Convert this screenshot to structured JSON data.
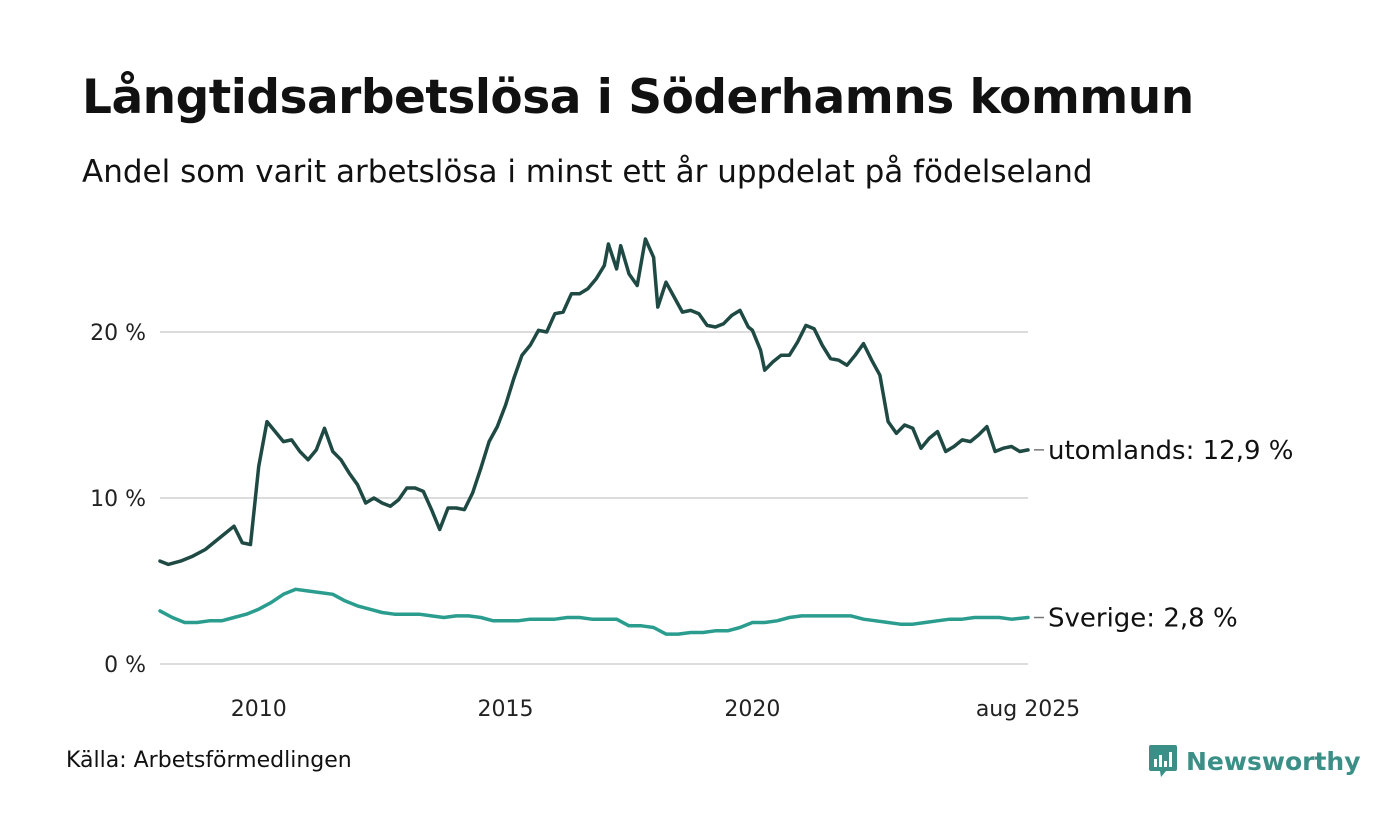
{
  "title": "Långtidsarbetslösa i Söderhamns kommun",
  "subtitle": "Andel som varit arbetslösa i minst ett år uppdelat på födelseland",
  "source": "Källa: Arbetsförmedlingen",
  "brand": {
    "name": "Newsworthy",
    "icon": "newsworthy-logo-icon",
    "color": "#3a8f86"
  },
  "chart_data": {
    "type": "line",
    "x_range": [
      "2008-01",
      "2025-08"
    ],
    "ylim": [
      0,
      26
    ],
    "y_ticks": [
      0,
      10,
      20
    ],
    "y_tick_labels": [
      "0 %",
      "10 %",
      "20 %"
    ],
    "x_ticks": [
      "2010-01",
      "2015-01",
      "2020-01",
      "2025-08"
    ],
    "x_tick_labels": [
      "2010",
      "2015",
      "2020",
      "aug 2025"
    ],
    "grid": "horizontal",
    "legend": "direct labels at line ends",
    "series": [
      {
        "name": "utomlands",
        "end_label": "utomlands: 12,9 %",
        "color": "#1f4a44",
        "points": [
          [
            "2008-01",
            6.2
          ],
          [
            "2008-03",
            6.0
          ],
          [
            "2008-06",
            6.2
          ],
          [
            "2008-09",
            6.5
          ],
          [
            "2008-12",
            6.9
          ],
          [
            "2009-03",
            7.5
          ],
          [
            "2009-05",
            7.9
          ],
          [
            "2009-07",
            8.3
          ],
          [
            "2009-09",
            7.3
          ],
          [
            "2009-11",
            7.2
          ],
          [
            "2010-01",
            11.9
          ],
          [
            "2010-03",
            14.6
          ],
          [
            "2010-05",
            14.0
          ],
          [
            "2010-07",
            13.4
          ],
          [
            "2010-09",
            13.5
          ],
          [
            "2010-11",
            12.8
          ],
          [
            "2011-01",
            12.3
          ],
          [
            "2011-03",
            12.9
          ],
          [
            "2011-05",
            14.2
          ],
          [
            "2011-07",
            12.8
          ],
          [
            "2011-09",
            12.3
          ],
          [
            "2011-11",
            11.5
          ],
          [
            "2012-01",
            10.8
          ],
          [
            "2012-03",
            9.7
          ],
          [
            "2012-05",
            10.0
          ],
          [
            "2012-07",
            9.7
          ],
          [
            "2012-09",
            9.5
          ],
          [
            "2012-11",
            9.9
          ],
          [
            "2013-01",
            10.6
          ],
          [
            "2013-03",
            10.6
          ],
          [
            "2013-05",
            10.4
          ],
          [
            "2013-07",
            9.3
          ],
          [
            "2013-09",
            8.1
          ],
          [
            "2013-11",
            9.4
          ],
          [
            "2014-01",
            9.4
          ],
          [
            "2014-03",
            9.3
          ],
          [
            "2014-05",
            10.3
          ],
          [
            "2014-07",
            11.8
          ],
          [
            "2014-09",
            13.4
          ],
          [
            "2014-11",
            14.3
          ],
          [
            "2015-01",
            15.6
          ],
          [
            "2015-03",
            17.2
          ],
          [
            "2015-05",
            18.6
          ],
          [
            "2015-07",
            19.2
          ],
          [
            "2015-09",
            20.1
          ],
          [
            "2015-11",
            20.0
          ],
          [
            "2016-01",
            21.1
          ],
          [
            "2016-03",
            21.2
          ],
          [
            "2016-05",
            22.3
          ],
          [
            "2016-07",
            22.3
          ],
          [
            "2016-09",
            22.6
          ],
          [
            "2016-11",
            23.2
          ],
          [
            "2017-01",
            24.0
          ],
          [
            "2017-02",
            25.3
          ],
          [
            "2017-04",
            23.8
          ],
          [
            "2017-05",
            25.2
          ],
          [
            "2017-07",
            23.5
          ],
          [
            "2017-09",
            22.8
          ],
          [
            "2017-11",
            25.6
          ],
          [
            "2018-01",
            24.5
          ],
          [
            "2018-02",
            21.5
          ],
          [
            "2018-04",
            23.0
          ],
          [
            "2018-06",
            22.1
          ],
          [
            "2018-08",
            21.2
          ],
          [
            "2018-10",
            21.3
          ],
          [
            "2018-12",
            21.1
          ],
          [
            "2019-02",
            20.4
          ],
          [
            "2019-04",
            20.3
          ],
          [
            "2019-06",
            20.5
          ],
          [
            "2019-08",
            21.0
          ],
          [
            "2019-10",
            21.3
          ],
          [
            "2019-12",
            20.3
          ],
          [
            "2020-01",
            20.1
          ],
          [
            "2020-03",
            18.9
          ],
          [
            "2020-04",
            17.7
          ],
          [
            "2020-06",
            18.2
          ],
          [
            "2020-08",
            18.6
          ],
          [
            "2020-10",
            18.6
          ],
          [
            "2020-12",
            19.4
          ],
          [
            "2021-02",
            20.4
          ],
          [
            "2021-04",
            20.2
          ],
          [
            "2021-06",
            19.2
          ],
          [
            "2021-08",
            18.4
          ],
          [
            "2021-10",
            18.3
          ],
          [
            "2021-12",
            18.0
          ],
          [
            "2022-02",
            18.6
          ],
          [
            "2022-04",
            19.3
          ],
          [
            "2022-06",
            18.3
          ],
          [
            "2022-08",
            17.4
          ],
          [
            "2022-10",
            14.6
          ],
          [
            "2022-12",
            13.9
          ],
          [
            "2023-02",
            14.4
          ],
          [
            "2023-04",
            14.2
          ],
          [
            "2023-06",
            13.0
          ],
          [
            "2023-08",
            13.6
          ],
          [
            "2023-10",
            14.0
          ],
          [
            "2023-12",
            12.8
          ],
          [
            "2024-02",
            13.1
          ],
          [
            "2024-04",
            13.5
          ],
          [
            "2024-06",
            13.4
          ],
          [
            "2024-08",
            13.8
          ],
          [
            "2024-10",
            14.3
          ],
          [
            "2024-12",
            12.8
          ],
          [
            "2025-02",
            13.0
          ],
          [
            "2025-04",
            13.1
          ],
          [
            "2025-06",
            12.8
          ],
          [
            "2025-08",
            12.9
          ]
        ]
      },
      {
        "name": "Sverige",
        "end_label": "Sverige:  2,8 %",
        "color": "#2a9d8f",
        "points": [
          [
            "2008-01",
            3.2
          ],
          [
            "2008-04",
            2.8
          ],
          [
            "2008-07",
            2.5
          ],
          [
            "2008-10",
            2.5
          ],
          [
            "2009-01",
            2.6
          ],
          [
            "2009-04",
            2.6
          ],
          [
            "2009-07",
            2.8
          ],
          [
            "2009-10",
            3.0
          ],
          [
            "2010-01",
            3.3
          ],
          [
            "2010-04",
            3.7
          ],
          [
            "2010-07",
            4.2
          ],
          [
            "2010-10",
            4.5
          ],
          [
            "2011-01",
            4.4
          ],
          [
            "2011-04",
            4.3
          ],
          [
            "2011-07",
            4.2
          ],
          [
            "2011-10",
            3.8
          ],
          [
            "2012-01",
            3.5
          ],
          [
            "2012-04",
            3.3
          ],
          [
            "2012-07",
            3.1
          ],
          [
            "2012-10",
            3.0
          ],
          [
            "2013-01",
            3.0
          ],
          [
            "2013-04",
            3.0
          ],
          [
            "2013-07",
            2.9
          ],
          [
            "2013-10",
            2.8
          ],
          [
            "2014-01",
            2.9
          ],
          [
            "2014-04",
            2.9
          ],
          [
            "2014-07",
            2.8
          ],
          [
            "2014-10",
            2.6
          ],
          [
            "2015-01",
            2.6
          ],
          [
            "2015-04",
            2.6
          ],
          [
            "2015-07",
            2.7
          ],
          [
            "2015-10",
            2.7
          ],
          [
            "2016-01",
            2.7
          ],
          [
            "2016-04",
            2.8
          ],
          [
            "2016-07",
            2.8
          ],
          [
            "2016-10",
            2.7
          ],
          [
            "2017-01",
            2.7
          ],
          [
            "2017-04",
            2.7
          ],
          [
            "2017-07",
            2.3
          ],
          [
            "2017-10",
            2.3
          ],
          [
            "2018-01",
            2.2
          ],
          [
            "2018-04",
            1.8
          ],
          [
            "2018-07",
            1.8
          ],
          [
            "2018-10",
            1.9
          ],
          [
            "2019-01",
            1.9
          ],
          [
            "2019-04",
            2.0
          ],
          [
            "2019-07",
            2.0
          ],
          [
            "2019-10",
            2.2
          ],
          [
            "2020-01",
            2.5
          ],
          [
            "2020-04",
            2.5
          ],
          [
            "2020-07",
            2.6
          ],
          [
            "2020-10",
            2.8
          ],
          [
            "2021-01",
            2.9
          ],
          [
            "2021-04",
            2.9
          ],
          [
            "2021-07",
            2.9
          ],
          [
            "2021-10",
            2.9
          ],
          [
            "2022-01",
            2.9
          ],
          [
            "2022-04",
            2.7
          ],
          [
            "2022-07",
            2.6
          ],
          [
            "2022-10",
            2.5
          ],
          [
            "2023-01",
            2.4
          ],
          [
            "2023-04",
            2.4
          ],
          [
            "2023-07",
            2.5
          ],
          [
            "2023-10",
            2.6
          ],
          [
            "2024-01",
            2.7
          ],
          [
            "2024-04",
            2.7
          ],
          [
            "2024-07",
            2.8
          ],
          [
            "2024-10",
            2.8
          ],
          [
            "2025-01",
            2.8
          ],
          [
            "2025-04",
            2.7
          ],
          [
            "2025-08",
            2.8
          ]
        ]
      }
    ]
  }
}
